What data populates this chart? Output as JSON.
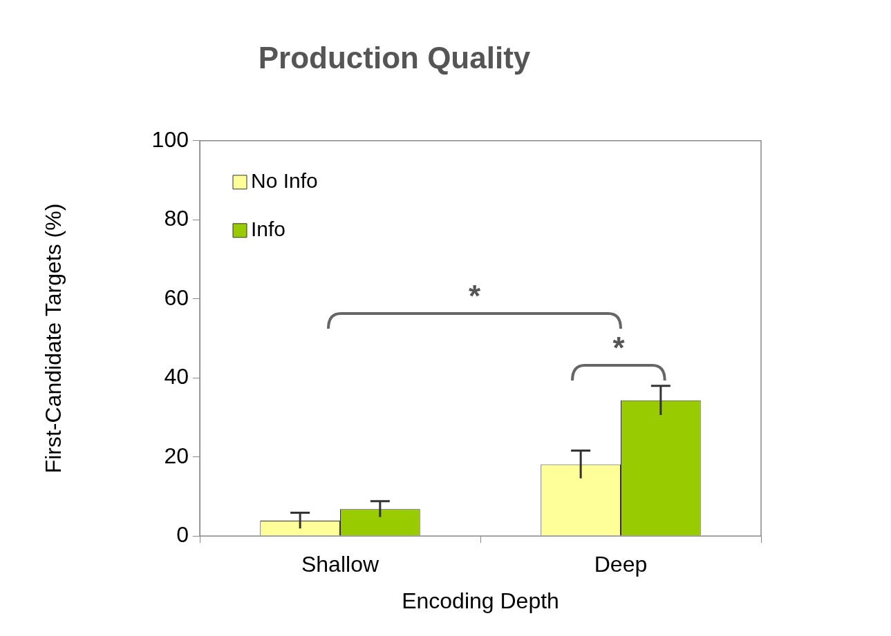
{
  "chart_data": {
    "type": "bar",
    "title": "Production Quality",
    "xlabel": "Encoding Depth",
    "ylabel": "First-Candidate Targets (%)",
    "categories": [
      "Shallow",
      "Deep"
    ],
    "series": [
      {
        "name": "No Info",
        "color": "#ffff99",
        "values": [
          3.9,
          18.1
        ],
        "errors": [
          2,
          3.5
        ]
      },
      {
        "name": "Info",
        "color": "#99cc00",
        "values": [
          6.8,
          34.3
        ],
        "errors": [
          2,
          3.7
        ]
      }
    ],
    "ylim": [
      0,
      100
    ],
    "yticks": [
      0,
      20,
      40,
      60,
      80,
      100
    ],
    "grid": false,
    "legend": "top left",
    "annotations": [
      "*",
      "*"
    ]
  }
}
